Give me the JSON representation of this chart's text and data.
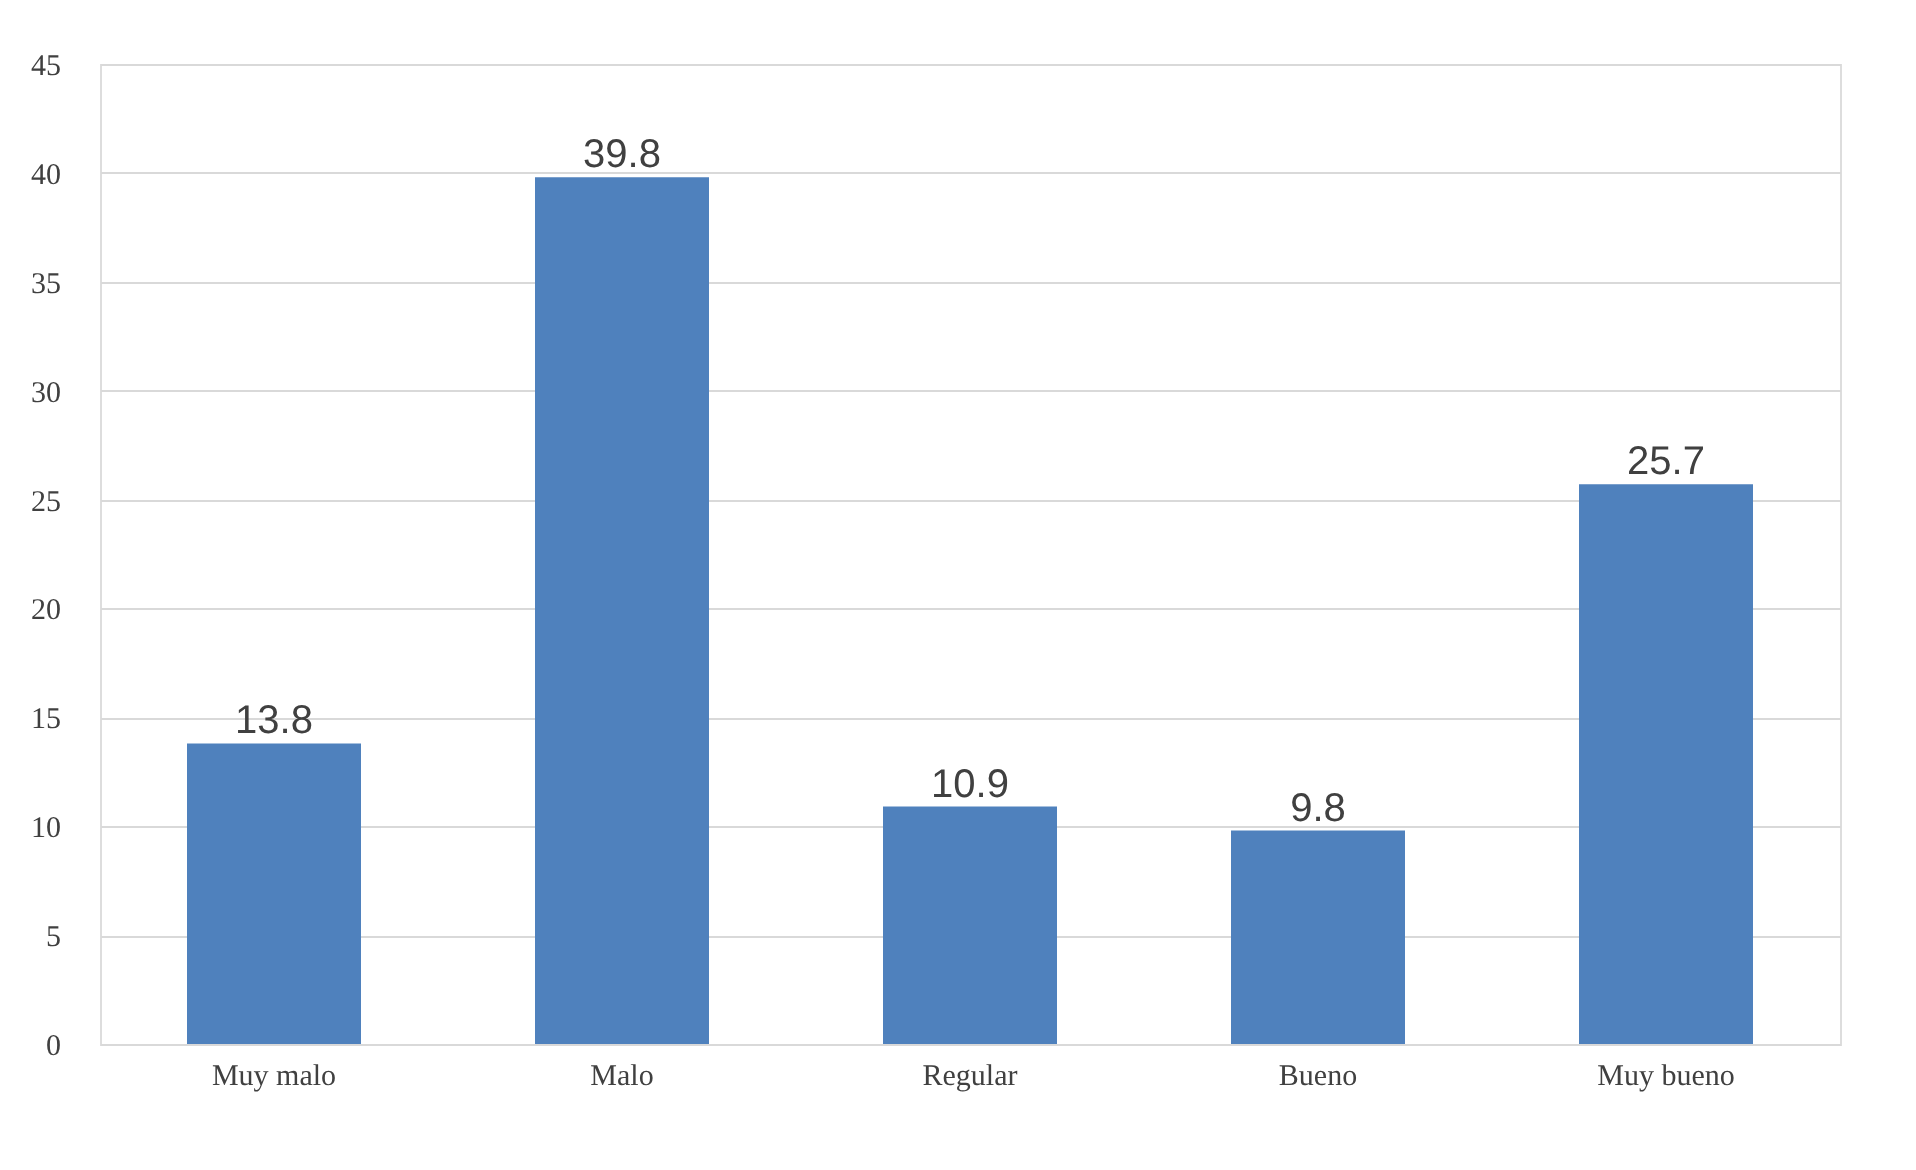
{
  "chart_data": {
    "type": "bar",
    "categories": [
      "Muy malo",
      "Malo",
      "Regular",
      "Bueno",
      "Muy bueno"
    ],
    "values": [
      13.8,
      39.8,
      10.9,
      9.8,
      25.7
    ],
    "color": "#4f81bd",
    "ylim": [
      0,
      45
    ],
    "yticks": [
      0,
      5,
      10,
      15,
      20,
      25,
      30,
      35,
      40,
      45
    ],
    "grid": "y",
    "data_labels": true
  }
}
